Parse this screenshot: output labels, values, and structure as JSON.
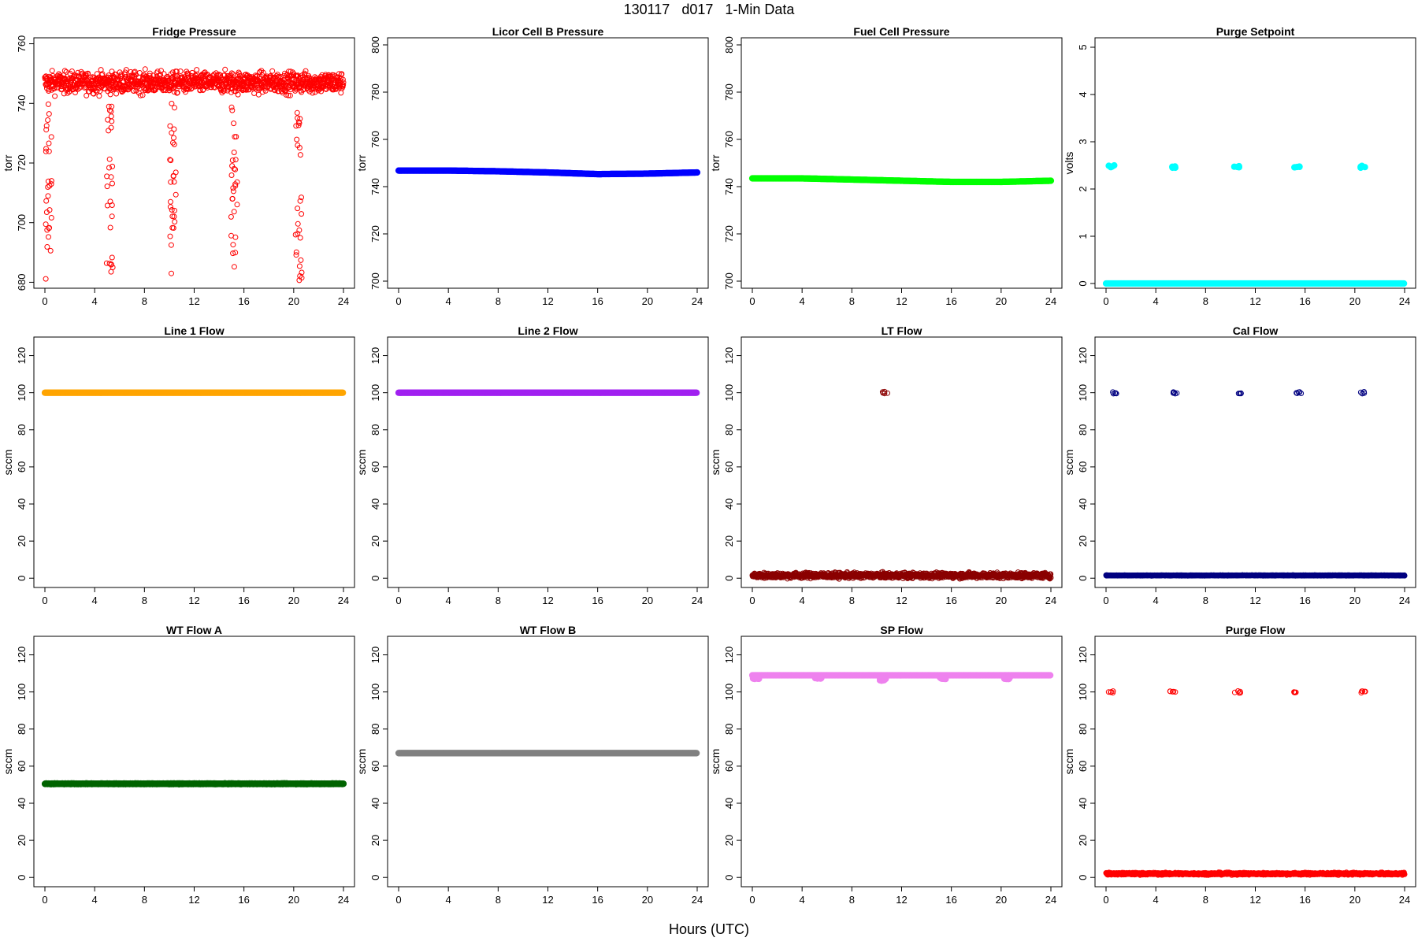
{
  "title": "130117   d017   1-Min Data",
  "xlabel": "Hours (UTC)",
  "chart_data": [
    {
      "type": "scatter",
      "title": "Fridge Pressure",
      "ylabel": "torr",
      "xlim": [
        0,
        24
      ],
      "ylim": [
        678,
        762
      ],
      "yticks": [
        680,
        700,
        720,
        740,
        760
      ],
      "xticks": [
        0,
        4,
        8,
        12,
        16,
        20,
        24
      ],
      "color": "#ff0000",
      "marker": "open-circle",
      "baseline": {
        "value": 747,
        "spread": 6
      },
      "dips": [
        {
          "x": 0.3,
          "min": 680
        },
        {
          "x": 5.2,
          "min": 683
        },
        {
          "x": 10.3,
          "min": 682
        },
        {
          "x": 15.2,
          "min": 683
        },
        {
          "x": 20.4,
          "min": 680
        }
      ]
    },
    {
      "type": "scatter",
      "title": "Licor Cell B Pressure",
      "ylabel": "torr",
      "xlim": [
        0,
        24
      ],
      "ylim": [
        697,
        803
      ],
      "yticks": [
        700,
        720,
        740,
        760,
        780,
        800
      ],
      "xticks": [
        0,
        4,
        8,
        12,
        16,
        20,
        24
      ],
      "color": "#0000ff",
      "marker": "filled-circle",
      "series": [
        {
          "x": [
            0,
            4,
            8,
            12,
            16,
            20,
            24
          ],
          "y": [
            746.8,
            746.8,
            746.5,
            746,
            745.3,
            745.5,
            746
          ]
        }
      ]
    },
    {
      "type": "scatter",
      "title": "Fuel Cell Pressure",
      "ylabel": "torr",
      "xlim": [
        0,
        24
      ],
      "ylim": [
        697,
        803
      ],
      "yticks": [
        700,
        720,
        740,
        760,
        780,
        800
      ],
      "xticks": [
        0,
        4,
        8,
        12,
        16,
        20,
        24
      ],
      "color": "#00ff00",
      "marker": "filled-circle",
      "series": [
        {
          "x": [
            0,
            4,
            8,
            12,
            16,
            20,
            24
          ],
          "y": [
            743.5,
            743.5,
            743,
            742.5,
            742,
            742,
            742.5
          ]
        }
      ]
    },
    {
      "type": "scatter",
      "title": "Purge Setpoint",
      "ylabel": "volts",
      "xlim": [
        0,
        24
      ],
      "ylim": [
        -0.1,
        5.2
      ],
      "yticks": [
        0,
        1,
        2,
        3,
        4,
        5
      ],
      "xticks": [
        0,
        4,
        8,
        12,
        16,
        20,
        24
      ],
      "color": "#00ffff",
      "marker": "filled-circle",
      "baseline": {
        "value": 0,
        "spread": 0
      },
      "clusters": [
        {
          "x": 0.3,
          "y": 2.48
        },
        {
          "x": 5.2,
          "y": 2.47
        },
        {
          "x": 10.4,
          "y": 2.47
        },
        {
          "x": 15.2,
          "y": 2.46
        },
        {
          "x": 20.5,
          "y": 2.47
        }
      ]
    },
    {
      "type": "scatter",
      "title": "Line 1 Flow",
      "ylabel": "sccm",
      "xlim": [
        0,
        24
      ],
      "ylim": [
        -5,
        130
      ],
      "yticks": [
        0,
        20,
        40,
        60,
        80,
        100,
        120
      ],
      "xticks": [
        0,
        4,
        8,
        12,
        16,
        20,
        24
      ],
      "color": "#ffa500",
      "marker": "filled-circle",
      "baseline": {
        "value": 100,
        "spread": 0
      }
    },
    {
      "type": "scatter",
      "title": "Line 2 Flow",
      "ylabel": "sccm",
      "xlim": [
        0,
        24
      ],
      "ylim": [
        -5,
        130
      ],
      "yticks": [
        0,
        20,
        40,
        60,
        80,
        100,
        120
      ],
      "xticks": [
        0,
        4,
        8,
        12,
        16,
        20,
        24
      ],
      "color": "#a020f0",
      "marker": "filled-circle",
      "baseline": {
        "value": 100,
        "spread": 0
      }
    },
    {
      "type": "scatter",
      "title": "LT Flow",
      "ylabel": "sccm",
      "xlim": [
        0,
        24
      ],
      "ylim": [
        -5,
        130
      ],
      "yticks": [
        0,
        20,
        40,
        60,
        80,
        100,
        120
      ],
      "xticks": [
        0,
        4,
        8,
        12,
        16,
        20,
        24
      ],
      "color": "#8b0000",
      "marker": "open-circle",
      "baseline": {
        "value": 1.5,
        "spread": 2.5
      },
      "clusters": [
        {
          "x": 10.5,
          "y": 100
        }
      ]
    },
    {
      "type": "scatter",
      "title": "Cal Flow",
      "ylabel": "sccm",
      "xlim": [
        0,
        24
      ],
      "ylim": [
        -5,
        130
      ],
      "yticks": [
        0,
        20,
        40,
        60,
        80,
        100,
        120
      ],
      "xticks": [
        0,
        4,
        8,
        12,
        16,
        20,
        24
      ],
      "color": "#000080",
      "marker": "open-circle",
      "baseline": {
        "value": 1.5,
        "spread": 0.3
      },
      "clusters": [
        {
          "x": 0.5,
          "y": 100
        },
        {
          "x": 5.3,
          "y": 100
        },
        {
          "x": 10.5,
          "y": 100
        },
        {
          "x": 15.3,
          "y": 100
        },
        {
          "x": 20.5,
          "y": 100
        }
      ]
    },
    {
      "type": "scatter",
      "title": "WT Flow A",
      "ylabel": "sccm",
      "xlim": [
        0,
        24
      ],
      "ylim": [
        -5,
        130
      ],
      "yticks": [
        0,
        20,
        40,
        60,
        80,
        100,
        120
      ],
      "xticks": [
        0,
        4,
        8,
        12,
        16,
        20,
        24
      ],
      "color": "#006400",
      "marker": "filled-circle",
      "baseline": {
        "value": 50.5,
        "spread": 0.3
      }
    },
    {
      "type": "scatter",
      "title": "WT Flow B",
      "ylabel": "sccm",
      "xlim": [
        0,
        24
      ],
      "ylim": [
        -5,
        130
      ],
      "yticks": [
        0,
        20,
        40,
        60,
        80,
        100,
        120
      ],
      "xticks": [
        0,
        4,
        8,
        12,
        16,
        20,
        24
      ],
      "color": "#808080",
      "marker": "filled-circle",
      "baseline": {
        "value": 67,
        "spread": 0
      }
    },
    {
      "type": "scatter",
      "title": "SP Flow",
      "ylabel": "sccm",
      "xlim": [
        0,
        24
      ],
      "ylim": [
        -5,
        130
      ],
      "yticks": [
        0,
        20,
        40,
        60,
        80,
        100,
        120
      ],
      "xticks": [
        0,
        4,
        8,
        12,
        16,
        20,
        24
      ],
      "color": "#ee82ee",
      "marker": "filled-circle",
      "baseline": {
        "value": 109,
        "spread": 0
      },
      "dips": [
        {
          "x": 0.3,
          "min": 107
        },
        {
          "x": 5.3,
          "min": 107
        },
        {
          "x": 10.5,
          "min": 106
        },
        {
          "x": 15.3,
          "min": 107
        },
        {
          "x": 20.5,
          "min": 107
        }
      ]
    },
    {
      "type": "scatter",
      "title": "Purge Flow",
      "ylabel": "sccm",
      "xlim": [
        0,
        24
      ],
      "ylim": [
        -5,
        130
      ],
      "yticks": [
        0,
        20,
        40,
        60,
        80,
        100,
        120
      ],
      "xticks": [
        0,
        4,
        8,
        12,
        16,
        20,
        24
      ],
      "color": "#ff0000",
      "marker": "open-circle",
      "baseline": {
        "value": 2,
        "spread": 1
      },
      "clusters": [
        {
          "x": 0.3,
          "y": 100
        },
        {
          "x": 5.2,
          "y": 100
        },
        {
          "x": 10.4,
          "y": 100
        },
        {
          "x": 15.2,
          "y": 100
        },
        {
          "x": 20.5,
          "y": 100
        }
      ]
    }
  ]
}
